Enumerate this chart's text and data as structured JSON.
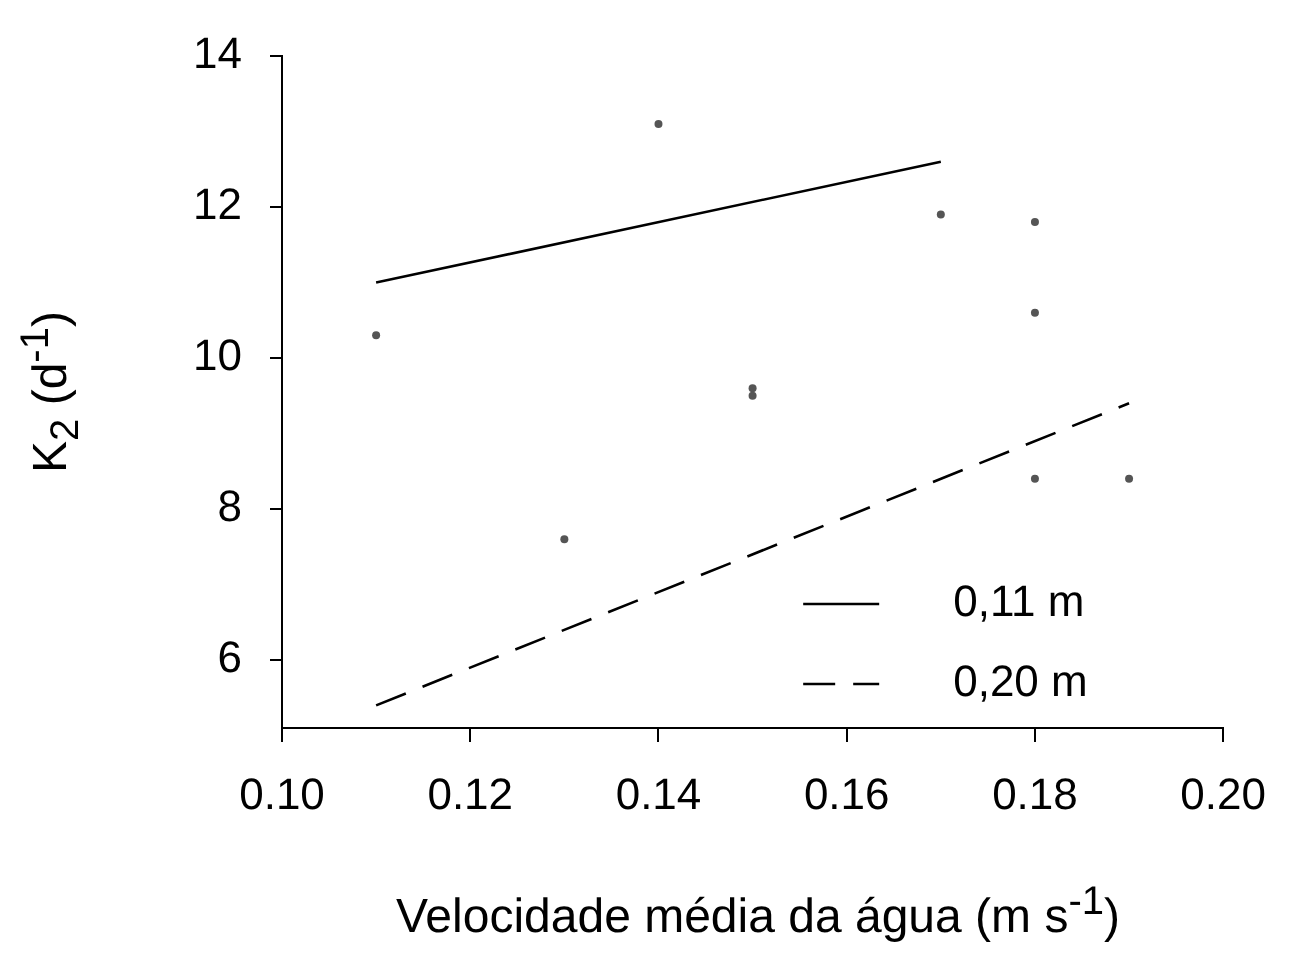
{
  "chart_data": {
    "type": "line",
    "xlabel": "Velocidade média da água (m s$^{-1}$)",
    "ylabel": "K$_{2}$ (d$^{-1}$)",
    "xlim": [
      0.1,
      0.2
    ],
    "xticks": [
      {
        "value": 0.1,
        "label": "0.10"
      },
      {
        "value": 0.12,
        "label": "0.12"
      },
      {
        "value": 0.14,
        "label": "0.14"
      },
      {
        "value": 0.16,
        "label": "0.16"
      },
      {
        "value": 0.18,
        "label": "0.18"
      },
      {
        "value": 0.2,
        "label": "0.20"
      }
    ],
    "ylim": [
      5.1,
      14
    ],
    "yticks": [
      6,
      8,
      10,
      12,
      14
    ],
    "grid": false,
    "legend": "bottom right",
    "series": [
      {
        "name": "0,11 m",
        "type": "line",
        "color": "#000000",
        "line_style": "solid",
        "marker": "none",
        "x": [
          0.11,
          0.17
        ],
        "values": [
          11.0,
          12.6
        ]
      },
      {
        "name": "0,20 m",
        "type": "line",
        "color": "#000000",
        "line_style": "dashed",
        "marker": "none",
        "x": [
          0.11,
          0.19
        ],
        "values": [
          5.4,
          9.4
        ]
      },
      {
        "type": "scatter",
        "color": "#555555",
        "marker": "circle",
        "x": [
          0.11,
          0.13,
          0.14,
          0.15,
          0.15,
          0.17,
          0.18,
          0.18,
          0.18,
          0.19
        ],
        "values": [
          10.3,
          7.6,
          13.1,
          9.6,
          9.5,
          11.9,
          11.8,
          10.6,
          8.4,
          8.4
        ]
      }
    ]
  }
}
